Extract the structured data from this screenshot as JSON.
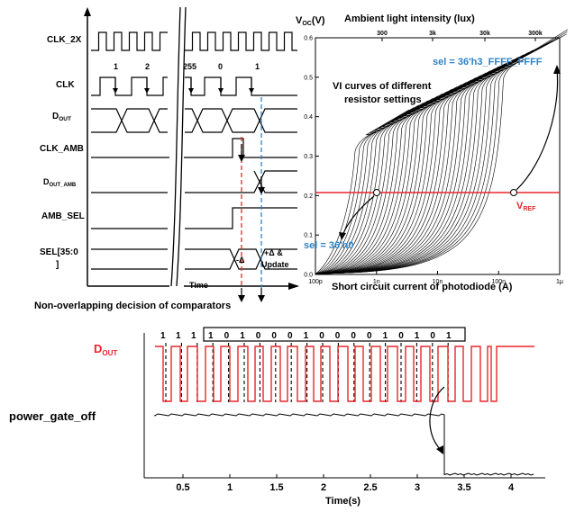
{
  "timing": {
    "signals": [
      "CLK_2X",
      "CLK",
      "D",
      "CLK_AMB",
      "D",
      "AMB_SEL",
      "SEL[35:0",
      "]"
    ],
    "dout_sub": "OUT",
    "dout_amb_sub": "OUT_AMB",
    "clk_counts": [
      "1",
      "2",
      "255",
      "0",
      "1"
    ],
    "delta_label": "-Δ",
    "plus_delta_label": "+Δ  &",
    "update_label": "Update",
    "time_label": "Time",
    "caption": "Non-overlapping decision of comparators"
  },
  "vi": {
    "y_label_main": "V",
    "y_label_sub": "OC",
    "y_label_unit": "(V)",
    "top_axis_title": "Ambient light intensity (lux)",
    "top_ticks": [
      "300",
      "3k",
      "30k",
      "300k"
    ],
    "y_ticks": [
      "0.0",
      "0.1",
      "0.2",
      "0.3",
      "0.4",
      "0.5",
      "0.6"
    ],
    "x_ticks": [
      "100p",
      "1n",
      "10n",
      "100n",
      "1μ"
    ],
    "x_axis_title": "Short circuit current of photodiode (A)",
    "annotation_top": "sel = 36'h3_FFFF_FFFF",
    "curve_label_line1": "VI curves of different",
    "curve_label_line2": "resistor settings",
    "annotation_bottom": "sel = 36'h0",
    "vref_main": "V",
    "vref_sub": "REF",
    "colors": {
      "vref": "#e8262b",
      "annotation": "#2e84c6"
    }
  },
  "transient": {
    "dout_main": "D",
    "dout_sub": "OUT",
    "power_label": "power_gate_off",
    "bits_outside": [
      "1",
      "1",
      "1"
    ],
    "bits_boxed": [
      "1",
      "0",
      "1",
      "0",
      "0",
      "0",
      "1",
      "0",
      "0",
      "0",
      "0",
      "1",
      "0",
      "1",
      "0",
      "1"
    ],
    "x_ticks": [
      "0.5",
      "1",
      "1.5",
      "2",
      "2.5",
      "3",
      "3.5",
      "4"
    ],
    "x_axis_title": "Time(s)",
    "colors": {
      "dout": "#e8262b",
      "power": "#000000"
    }
  }
}
